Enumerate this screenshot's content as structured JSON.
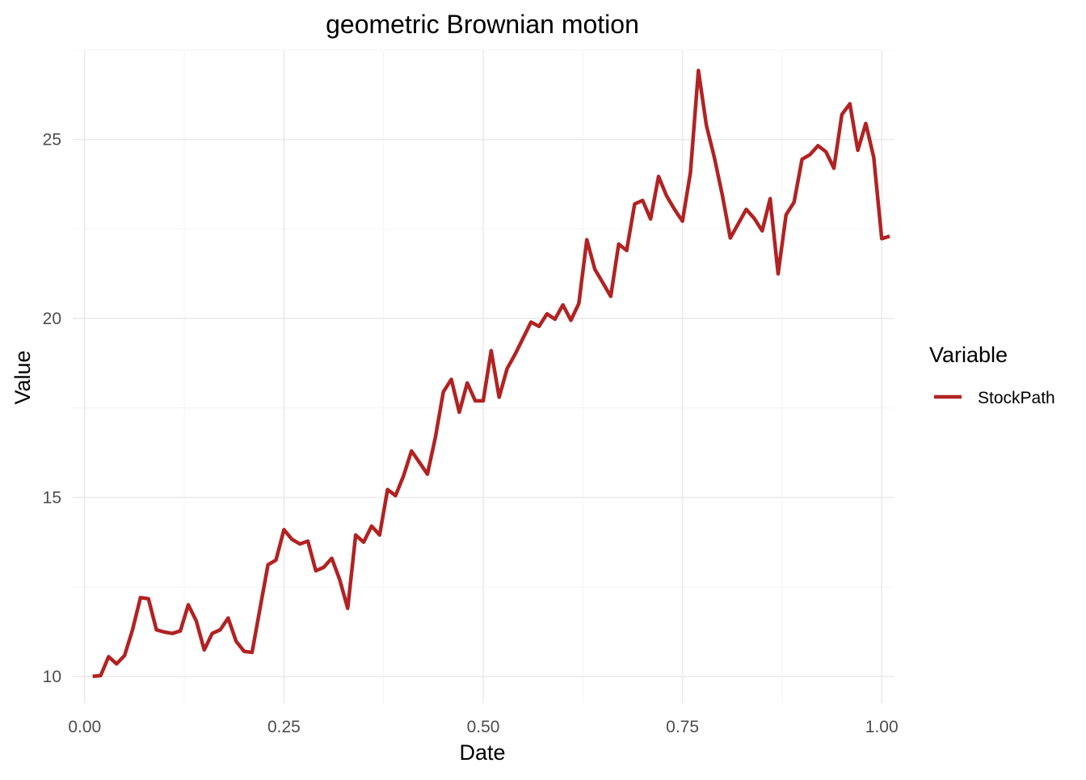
{
  "chart_data": {
    "type": "line",
    "title": "geometric Brownian motion",
    "xlabel": "Date",
    "ylabel": "Value",
    "xlim": [
      -0.015,
      1.015
    ],
    "ylim": [
      9.25,
      27.5
    ],
    "x_ticks": [
      0.0,
      0.25,
      0.5,
      0.75,
      1.0
    ],
    "x_tick_labels": [
      "0.00",
      "0.25",
      "0.50",
      "0.75",
      "1.00"
    ],
    "y_ticks": [
      10,
      15,
      20,
      25
    ],
    "y_tick_labels": [
      "10",
      "15",
      "20",
      "25"
    ],
    "grid": true,
    "legend": {
      "title": "Variable",
      "position": "right"
    },
    "series": [
      {
        "name": "StockPath",
        "color": "#b22222",
        "x": [
          0.01,
          0.02,
          0.03,
          0.04,
          0.05,
          0.06,
          0.07,
          0.08,
          0.09,
          0.1,
          0.11,
          0.12,
          0.13,
          0.14,
          0.15,
          0.16,
          0.17,
          0.18,
          0.19,
          0.2,
          0.21,
          0.22,
          0.23,
          0.24,
          0.25,
          0.26,
          0.27,
          0.28,
          0.29,
          0.3,
          0.31,
          0.32,
          0.33,
          0.34,
          0.35,
          0.36,
          0.37,
          0.38,
          0.39,
          0.4,
          0.41,
          0.42,
          0.43,
          0.44,
          0.45,
          0.46,
          0.47,
          0.48,
          0.49,
          0.5,
          0.51,
          0.52,
          0.53,
          0.54,
          0.55,
          0.56,
          0.57,
          0.58,
          0.59,
          0.6,
          0.61,
          0.62,
          0.63,
          0.64,
          0.65,
          0.66,
          0.67,
          0.68,
          0.69,
          0.7,
          0.71,
          0.72,
          0.73,
          0.74,
          0.75,
          0.76,
          0.77,
          0.78,
          0.79,
          0.8,
          0.81,
          0.82,
          0.83,
          0.84,
          0.85,
          0.86,
          0.87,
          0.88,
          0.89,
          0.9,
          0.91,
          0.92,
          0.93,
          0.94,
          0.95,
          0.96,
          0.97,
          0.98,
          0.99,
          1.0,
          1.01
        ],
        "values": [
          10.0,
          10.02,
          10.55,
          10.35,
          10.58,
          11.3,
          12.2,
          12.17,
          11.3,
          11.24,
          11.2,
          11.27,
          12.0,
          11.55,
          10.74,
          11.2,
          11.3,
          11.63,
          10.98,
          10.7,
          10.67,
          11.9,
          13.12,
          13.25,
          14.1,
          13.83,
          13.7,
          13.78,
          12.95,
          13.05,
          13.3,
          12.7,
          11.9,
          13.95,
          13.75,
          14.2,
          13.95,
          15.22,
          15.05,
          15.6,
          16.3,
          15.98,
          15.65,
          16.68,
          17.95,
          18.3,
          17.38,
          18.2,
          17.7,
          17.7,
          19.1,
          17.8,
          18.6,
          19.0,
          19.45,
          19.9,
          19.78,
          20.13,
          19.98,
          20.38,
          19.95,
          20.42,
          22.2,
          21.38,
          21.0,
          20.62,
          22.08,
          21.9,
          23.2,
          23.3,
          22.78,
          23.97,
          23.43,
          23.05,
          22.72,
          24.08,
          26.93,
          25.4,
          24.5,
          23.45,
          22.25,
          22.65,
          23.05,
          22.8,
          22.45,
          23.35,
          21.25,
          22.9,
          23.25,
          24.45,
          24.58,
          24.83,
          24.66,
          24.2,
          25.7,
          26.0,
          24.7,
          25.45,
          24.5,
          22.23,
          22.3
        ]
      }
    ]
  }
}
